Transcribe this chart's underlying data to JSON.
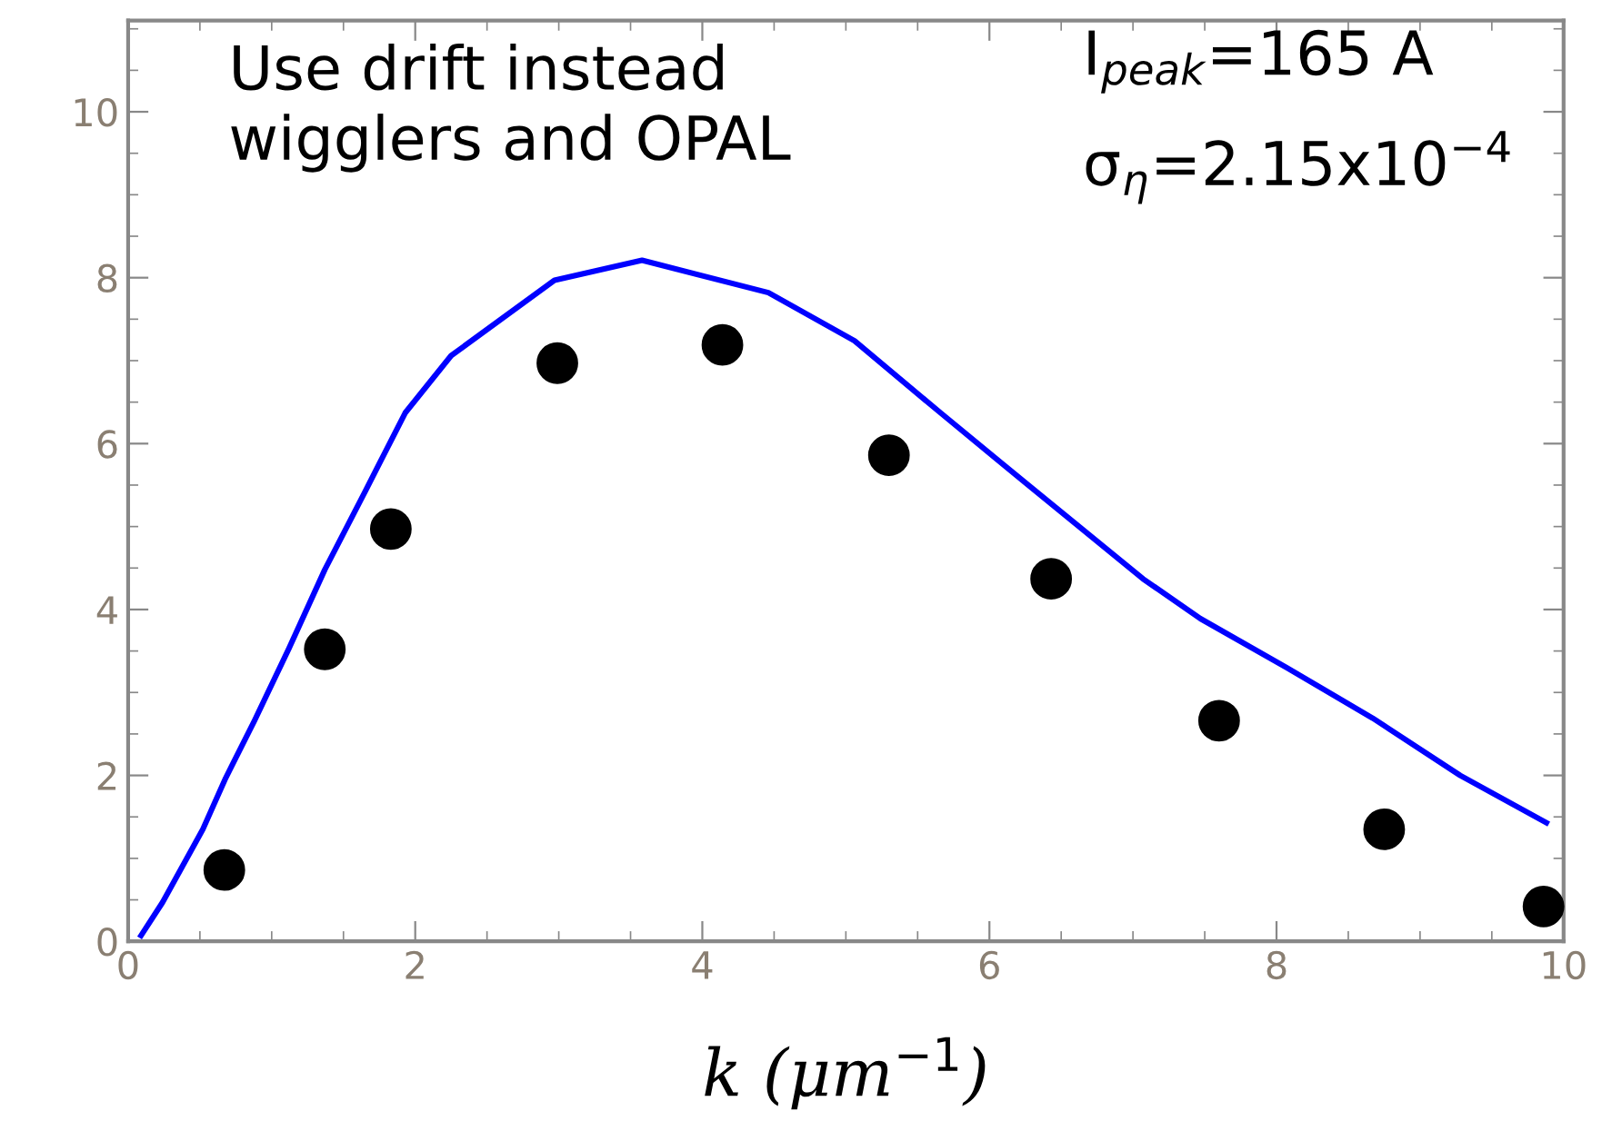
{
  "chart_data": {
    "type": "scatter",
    "xlabel": "k (μm$^{−1}$)",
    "xlim": [
      0,
      10
    ],
    "xticks": [
      0,
      2,
      4,
      6,
      8,
      10
    ],
    "ylim": [
      0,
      11.1
    ],
    "yticks": [
      0,
      2,
      4,
      6,
      8,
      10
    ],
    "grid": false,
    "legend": false,
    "tick_labels": "xy",
    "series": [
      {
        "type": "line",
        "color": "#0000ff",
        "marker": "none",
        "line_style": "solid",
        "x": [
          0.09,
          0.24,
          0.52,
          0.68,
          0.88,
          1.12,
          1.37,
          1.65,
          1.93,
          2.25,
          2.97,
          3.58,
          4.46,
          5.06,
          5.66,
          6.27,
          7.07,
          7.47,
          8.07,
          8.67,
          9.28,
          9.88
        ],
        "values": [
          0.07,
          0.47,
          1.35,
          1.97,
          2.66,
          3.53,
          4.48,
          5.42,
          6.37,
          7.06,
          7.97,
          8.21,
          7.82,
          7.24,
          6.37,
          5.5,
          4.37,
          3.89,
          3.3,
          2.69,
          2.0,
          1.43
        ]
      },
      {
        "color": "#000000",
        "marker": "circle",
        "x": [
          0.67,
          1.37,
          1.83,
          2.99,
          4.14,
          5.3,
          6.43,
          7.6,
          8.75,
          9.86
        ],
        "values": [
          0.86,
          3.52,
          4.97,
          6.97,
          7.19,
          5.86,
          4.37,
          2.66,
          1.35,
          0.42
        ]
      }
    ],
    "annotations": [
      "Use drift instead\nwigglers and OPAL",
      "I$_{peak}$=165 A",
      "σ$_{η}$=2.15x10$^{−4}$"
    ]
  }
}
